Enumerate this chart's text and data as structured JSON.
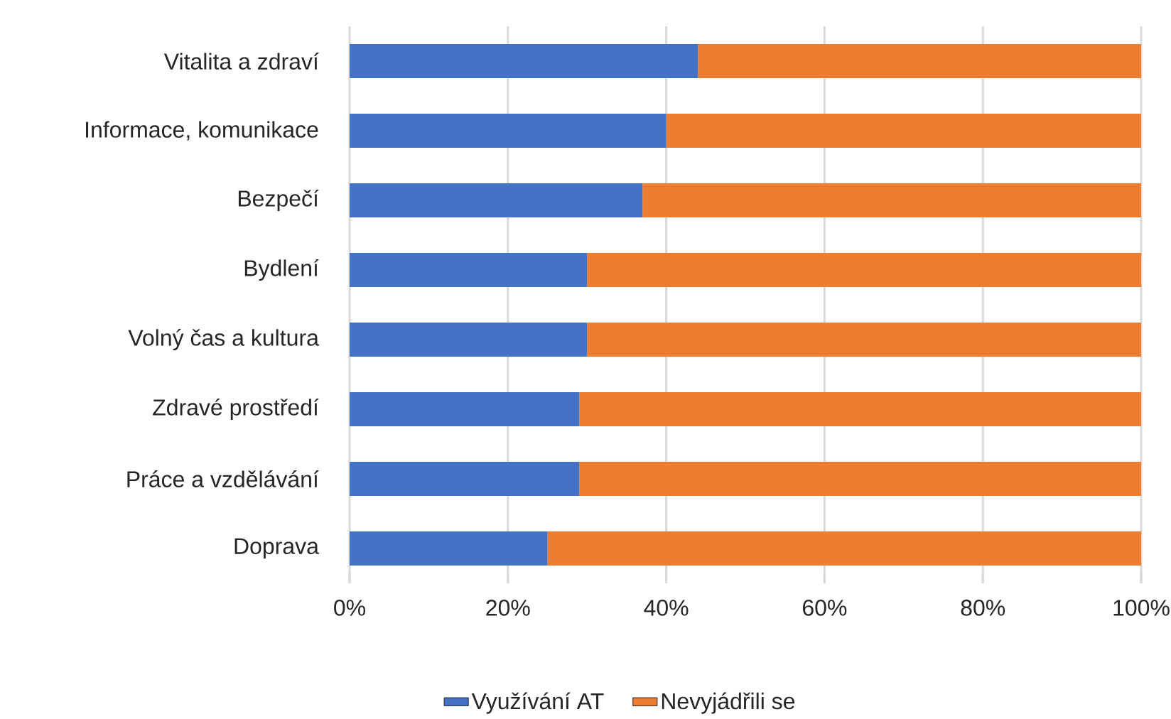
{
  "chart_data": {
    "type": "bar",
    "orientation": "horizontal",
    "stacked": true,
    "categories": [
      "Vitalita a zdraví",
      "Informace, komunikace",
      "Bezpečí",
      "Bydlení",
      "Volný čas a kultura",
      "Zdravé prostředí",
      "Práce a vzdělávání",
      "Doprava"
    ],
    "series": [
      {
        "name": "Využívání AT",
        "color": "#4472c4",
        "values": [
          44,
          40,
          37,
          30,
          30,
          29,
          29,
          25
        ]
      },
      {
        "name": "Nevyjádřili se",
        "color": "#ed7d31",
        "values": [
          56,
          60,
          63,
          70,
          70,
          71,
          71,
          75
        ]
      }
    ],
    "xlim": [
      0,
      100
    ],
    "xticks": [
      {
        "value": 0,
        "label": "0%"
      },
      {
        "value": 20,
        "label": "20%"
      },
      {
        "value": 40,
        "label": "40%"
      },
      {
        "value": 60,
        "label": "60%"
      },
      {
        "value": 80,
        "label": "80%"
      },
      {
        "value": 100,
        "label": "100%"
      }
    ],
    "grid": "x",
    "legend": "bottom"
  }
}
